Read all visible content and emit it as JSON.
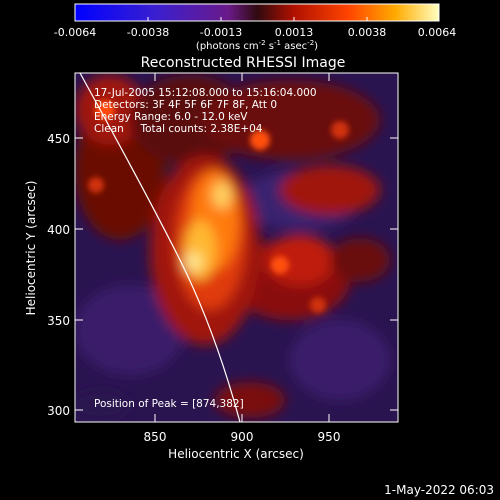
{
  "colorbar": {
    "tick_labels": [
      "-0.0064",
      "-0.0038",
      "-0.0013",
      "0.0013",
      "0.0038",
      "0.0064"
    ],
    "units_prefix": "(photons cm",
    "units_sup1": "-2",
    "units_mid1": " s",
    "units_sup2": "-1",
    "units_mid2": " asec",
    "units_sup3": "-2",
    "units_suffix": ")"
  },
  "image": {
    "title": "Reconstructed RHESSI Image",
    "info_lines": [
      "17-Jul-2005 15:12:08.000 to 15:16:04.000",
      "Detectors: 3F 4F 5F 6F 7F 8F, Att 0",
      "Energy Range: 6.0 - 12.0 keV",
      "Clean     Total counts: 2.38E+04"
    ],
    "peak_label": "Position of Peak = [874,382]",
    "xlabel": "Heliocentric X (arcsec)",
    "ylabel": "Heliocentric Y (arcsec)",
    "x_ticks": [
      "850",
      "900",
      "950"
    ],
    "y_ticks": [
      "300",
      "350",
      "400",
      "450"
    ]
  },
  "footer": {
    "date": "1-May-2022 06:03"
  }
}
